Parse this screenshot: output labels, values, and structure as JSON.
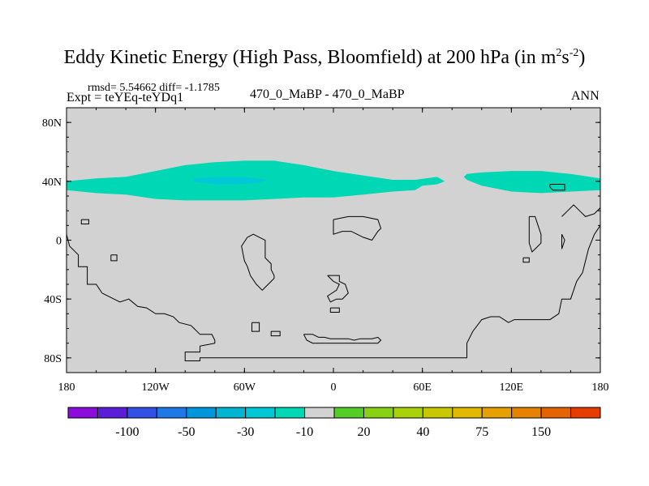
{
  "header": {
    "title_main": "Eddy Kinetic Energy (High Pass, Bloomfield) at 200 hPa (in m",
    "title_sup1": "2",
    "title_mid": "s",
    "title_sup2": "-2",
    "title_end": ")",
    "stats": "rmsd= 5.54662 diff= -1.1785",
    "expt": "Expt = teYEq-teYDq1",
    "center_label": "470_0_MaBP - 470_0_MaBP",
    "season": "ANN"
  },
  "chart_data": {
    "type": "contour-map",
    "title": "Eddy Kinetic Energy (High Pass, Bloomfield) at 200 hPa (in m^2 s^-2)",
    "field": "difference (teYEq - teYDq1)",
    "rmsd": 5.54662,
    "diff": -1.1785,
    "xlim": [
      -180,
      180
    ],
    "ylim": [
      -90,
      90
    ],
    "x_ticks": [
      -180,
      -120,
      -60,
      0,
      60,
      120,
      180
    ],
    "x_tick_labels": [
      "180",
      "120W",
      "60W",
      "0",
      "60E",
      "120E",
      "180"
    ],
    "y_ticks": [
      80,
      40,
      0,
      -40,
      -80
    ],
    "y_tick_labels": [
      "80N",
      "40N",
      "0",
      "40S",
      "80S"
    ],
    "background_fill": "#d2d2d2",
    "features": [
      {
        "name": "jet-band-west",
        "level": "-20 to -10",
        "color": "#00d7b4",
        "lon": [
          -180,
          -180,
          -160,
          -140,
          -120,
          -100,
          -80,
          -60,
          -40,
          -20,
          0,
          20,
          40,
          55,
          60,
          70,
          75,
          70,
          55,
          40,
          20,
          0,
          -20,
          -40,
          -60,
          -80,
          -100,
          -120,
          -140,
          -160
        ],
        "lat": [
          40,
          34,
          32,
          31,
          28,
          27,
          27,
          27,
          28,
          29,
          29,
          31,
          33,
          34,
          37,
          38,
          40,
          43,
          41,
          41,
          44,
          47,
          51,
          54,
          54,
          53,
          51,
          47,
          43,
          42
        ]
      },
      {
        "name": "jet-core",
        "level": "-30 to -20",
        "color": "#00c8d7",
        "lon": [
          -95,
          -80,
          -65,
          -50,
          -45,
          -60,
          -80,
          -95
        ],
        "lat": [
          40,
          38,
          38,
          39,
          41,
          43,
          43,
          42
        ]
      },
      {
        "name": "jet-band-east",
        "level": "-20 to -10",
        "color": "#00d7b4",
        "lon": [
          90,
          100,
          120,
          140,
          160,
          180,
          180,
          160,
          140,
          120,
          100,
          90,
          88
        ],
        "lat": [
          41,
          37,
          33,
          32,
          33,
          34,
          42,
          45,
          47,
          47,
          46,
          45,
          43
        ]
      }
    ],
    "outlines": [
      {
        "lon": [
          -180,
          -178,
          -172,
          -172,
          -166,
          -166,
          -160,
          -156,
          -148,
          -144,
          -138,
          -132,
          -126,
          -120,
          -114,
          -108,
          -104,
          -96,
          -94,
          -90,
          -82,
          -80,
          -80,
          -90,
          -90,
          -100,
          -100,
          -90,
          -90,
          90,
          90,
          94,
          100,
          106,
          112,
          118,
          122,
          134,
          146,
          152,
          154,
          160,
          162,
          164,
          168,
          172,
          176,
          180
        ],
        "lat": [
          4,
          -4,
          -10,
          -18,
          -18,
          -30,
          -30,
          -36,
          -40,
          -42,
          -40,
          -45,
          -46,
          -50,
          -50,
          -52,
          -56,
          -58,
          -60,
          -64,
          -64,
          -68,
          -70,
          -72,
          -76,
          -76,
          -82,
          -82,
          -80,
          -80,
          -70,
          -62,
          -54,
          -52,
          -52,
          -56,
          -54,
          -54,
          -54,
          -50,
          -40,
          -40,
          -34,
          -28,
          -22,
          -6,
          4,
          10
        ]
      },
      {
        "lon": [
          -170,
          -165,
          -165,
          -170,
          -170
        ],
        "lat": [
          14,
          14,
          11,
          11,
          14
        ]
      },
      {
        "lon": [
          -150,
          -146,
          -146,
          -150,
          -150
        ],
        "lat": [
          -10,
          -10,
          -14,
          -14,
          -10
        ]
      },
      {
        "lon": [
          -58,
          -54,
          -50,
          -46,
          -46,
          -42,
          -42,
          -40,
          -40,
          -44,
          -46,
          -48,
          -52,
          -56,
          -58,
          -60,
          -62,
          -58
        ],
        "lat": [
          2,
          4,
          2,
          0,
          -12,
          -16,
          -20,
          -24,
          -26,
          -30,
          -32,
          -34,
          -30,
          -24,
          -18,
          -14,
          -4,
          2
        ]
      },
      {
        "lon": [
          -55,
          -50,
          -50,
          -55,
          -55
        ],
        "lat": [
          -56,
          -56,
          -62,
          -62,
          -56
        ]
      },
      {
        "lon": [
          -42,
          -36,
          -36,
          -42,
          -42
        ],
        "lat": [
          -62,
          -62,
          -65,
          -65,
          -62
        ]
      },
      {
        "lon": [
          -20,
          -14,
          -10,
          -6,
          -2,
          2,
          6,
          10,
          14,
          18,
          22,
          26,
          30,
          32,
          30,
          26,
          20,
          14,
          10,
          6,
          2,
          -2,
          -6,
          -10,
          -14,
          -18,
          -20
        ],
        "lat": [
          -64,
          -64,
          -66,
          -66,
          -67,
          -67,
          -67,
          -67,
          -68,
          -67,
          -67,
          -67,
          -66,
          -68,
          -70,
          -70,
          -70,
          -70,
          -70,
          -70,
          -70,
          -70,
          -70,
          -70,
          -70,
          -68,
          -64
        ]
      },
      {
        "lon": [
          0,
          10,
          20,
          30,
          32,
          30,
          26,
          20,
          12,
          6,
          0,
          0
        ],
        "lat": [
          14,
          16,
          16,
          14,
          8,
          6,
          0,
          2,
          6,
          6,
          4,
          14
        ]
      },
      {
        "lon": [
          -4,
          4,
          4,
          8,
          10,
          6,
          2,
          -2,
          -4,
          2,
          4,
          0,
          -4
        ],
        "lat": [
          -24,
          -24,
          -28,
          -30,
          -36,
          -40,
          -40,
          -42,
          -38,
          -34,
          -30,
          -28,
          -24
        ]
      },
      {
        "lon": [
          -2,
          4,
          4,
          -2,
          -2
        ],
        "lat": [
          -46,
          -46,
          -49,
          -49,
          -46
        ]
      },
      {
        "lon": [
          132,
          136,
          138,
          140,
          140,
          136,
          134,
          132,
          132
        ],
        "lat": [
          16,
          16,
          10,
          4,
          -2,
          -6,
          -8,
          -2,
          16
        ]
      },
      {
        "lon": [
          128,
          132,
          132,
          128,
          128
        ],
        "lat": [
          -12,
          -12,
          -15,
          -15,
          -12
        ]
      },
      {
        "lon": [
          154,
          158,
          162,
          166,
          170,
          176,
          180
        ],
        "lat": [
          16,
          20,
          24,
          20,
          16,
          18,
          22
        ]
      },
      {
        "lon": [
          154,
          156,
          154,
          154
        ],
        "lat": [
          -6,
          0,
          4,
          -6
        ]
      },
      {
        "lon": [
          146,
          156,
          156,
          148,
          146,
          146
        ],
        "lat": [
          38,
          38,
          34,
          34,
          36,
          38
        ]
      }
    ],
    "colorbar": {
      "colors": [
        "#8a0ddc",
        "#5a1ed8",
        "#3250e6",
        "#1e78e6",
        "#0096dc",
        "#00b4d2",
        "#00c8d7",
        "#00d7b4",
        "#d2d2d2",
        "#55cd28",
        "#87d214",
        "#aad20a",
        "#c8c800",
        "#e1b900",
        "#e6a000",
        "#e68200",
        "#e66400",
        "#e63c00"
      ],
      "labels": [
        "-100",
        "-50",
        "-30",
        "-10",
        "20",
        "40",
        "75",
        "150"
      ]
    }
  }
}
